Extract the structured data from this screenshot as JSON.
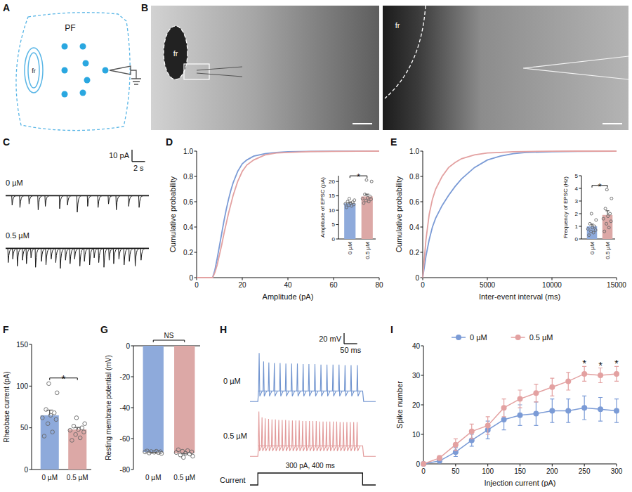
{
  "diagrams": [
    {
      "panel": "A",
      "labels": [
        "PF",
        "fr"
      ]
    },
    {
      "panel": "B",
      "labels": [
        "fr",
        "fr"
      ]
    }
  ],
  "chart_data": [
    {
      "panel": "C",
      "type": "trace",
      "tick_labels": false,
      "xlim": [
        0,
        22
      ],
      "ylim": [
        -20,
        5
      ],
      "scale_bars": [
        {
          "axis": "y",
          "value": 10,
          "label": "10 pA"
        },
        {
          "axis": "x",
          "value": 2,
          "label": "2 s"
        }
      ],
      "series": [
        {
          "name": "0 µM",
          "color": "#1a1a1a",
          "x": [
            1.0,
            2.2,
            3.6,
            5.0,
            6.1,
            8.3,
            9.5,
            11.0,
            12.6,
            14.2,
            15.8,
            17.0,
            18.9,
            20.5
          ],
          "values": [
            -8,
            -10,
            -7,
            -12,
            -9,
            -11,
            -8,
            -14,
            -9,
            -10,
            -7,
            -12,
            -9,
            -10
          ]
        },
        {
          "name": "0.5 µM",
          "color": "#1a1a1a",
          "x": [
            0.4,
            1.1,
            1.8,
            2.6,
            3.2,
            3.9,
            4.6,
            5.5,
            6.2,
            7.0,
            7.7,
            8.4,
            9.2,
            9.9,
            10.6,
            11.4,
            12.1,
            12.9,
            13.6,
            14.3,
            15.1,
            15.9,
            16.6,
            17.4,
            18.2,
            19.0,
            19.9,
            20.8
          ],
          "values": [
            -12,
            -9,
            -15,
            -10,
            -13,
            -8,
            -16,
            -11,
            -14,
            -9,
            -12,
            -17,
            -10,
            -13,
            -9,
            -15,
            -11,
            -14,
            -8,
            -12,
            -16,
            -10,
            -13,
            -9,
            -14,
            -11,
            -15,
            -10
          ]
        }
      ]
    },
    {
      "panel": "D",
      "type": "line",
      "x_label": "Amplitude (pA)",
      "y_label": "Cumulative probability",
      "xlim": [
        0,
        80
      ],
      "xticks": [
        0,
        20,
        40,
        60,
        80
      ],
      "ylim": [
        0,
        1
      ],
      "yticks": [
        0,
        0.2,
        0.4,
        0.6,
        0.8,
        {
          "value": 1,
          "label": "1.0"
        }
      ],
      "series": [
        {
          "color": "#7b9bd6",
          "x": [
            0,
            7,
            8,
            9,
            10,
            11,
            12,
            13,
            14,
            15,
            16,
            18,
            20,
            22,
            25,
            30,
            35,
            40,
            50,
            60,
            80
          ],
          "values": [
            0,
            0,
            0.06,
            0.15,
            0.25,
            0.35,
            0.45,
            0.54,
            0.62,
            0.69,
            0.75,
            0.84,
            0.9,
            0.93,
            0.96,
            0.98,
            0.99,
            0.995,
            0.998,
            0.999,
            1
          ]
        },
        {
          "color": "#e3a1a1",
          "x": [
            0,
            7,
            8,
            9,
            10,
            11,
            12,
            13,
            14,
            15,
            16,
            18,
            20,
            22,
            25,
            30,
            35,
            40,
            50,
            60,
            80
          ],
          "values": [
            0,
            0,
            0.04,
            0.1,
            0.18,
            0.26,
            0.35,
            0.43,
            0.51,
            0.58,
            0.65,
            0.76,
            0.84,
            0.89,
            0.93,
            0.97,
            0.985,
            0.99,
            0.996,
            0.998,
            1
          ]
        }
      ]
    },
    {
      "type": "bar",
      "y_label": "Amplitude of EPSC (pA)",
      "categories": [
        "0 µM",
        "0.5 µM"
      ],
      "values": [
        12.4,
        14.8
      ],
      "errors": [
        0.3,
        0.8
      ],
      "points": [
        [
          11,
          11.5,
          11.8,
          12,
          12.2,
          12.5,
          12.8,
          13,
          13.5,
          14
        ],
        [
          12.5,
          13,
          13.4,
          13.8,
          14,
          14.3,
          14.8,
          15.5,
          20,
          20.5
        ]
      ],
      "colors": [
        "#8eaadb",
        "#dca8a6"
      ],
      "ylim": [
        0,
        22
      ],
      "yticks": [
        0,
        5,
        10,
        15,
        20
      ],
      "annotations": [
        {
          "text": "*"
        }
      ]
    },
    {
      "panel": "E",
      "type": "line",
      "x_label": "Inter-event interval (ms)",
      "y_label": "Cumulative probability",
      "xlim": [
        0,
        15000
      ],
      "xticks": [
        0,
        5000,
        10000,
        15000
      ],
      "ylim": [
        0,
        1
      ],
      "yticks": [
        0,
        0.2,
        0.4,
        0.6,
        0.8,
        {
          "value": 1,
          "label": "1.0"
        }
      ],
      "series": [
        {
          "color": "#7b9bd6",
          "x": [
            0,
            250,
            500,
            750,
            1000,
            1500,
            2000,
            2500,
            3000,
            4000,
            5000,
            6000,
            7000,
            8000,
            10000,
            12000,
            15000
          ],
          "values": [
            0,
            0.17,
            0.3,
            0.4,
            0.47,
            0.57,
            0.65,
            0.72,
            0.78,
            0.87,
            0.93,
            0.96,
            0.98,
            0.99,
            0.995,
            0.998,
            1
          ]
        },
        {
          "color": "#e3a1a1",
          "x": [
            0,
            250,
            500,
            750,
            1000,
            1500,
            2000,
            2500,
            3000,
            4000,
            5000,
            6000,
            7000,
            8000,
            10000,
            12000,
            15000
          ],
          "values": [
            0,
            0.3,
            0.5,
            0.62,
            0.7,
            0.8,
            0.87,
            0.91,
            0.94,
            0.97,
            0.985,
            0.99,
            0.995,
            0.997,
            0.999,
            1,
            1
          ]
        }
      ]
    },
    {
      "type": "bar",
      "y_label": "Frequency of EPSC (Hz)",
      "categories": [
        "0 µM",
        "0.5 µM"
      ],
      "values": [
        1.0,
        1.9
      ],
      "errors": [
        0.17,
        0.33
      ],
      "points": [
        [
          0.3,
          0.5,
          0.6,
          0.7,
          0.8,
          0.9,
          1.0,
          1.2,
          1.5,
          2.0
        ],
        [
          0.6,
          0.9,
          1.2,
          1.4,
          1.6,
          1.8,
          2.0,
          2.4,
          3.2,
          3.9
        ]
      ],
      "colors": [
        "#8eaadb",
        "#dca8a6"
      ],
      "ylim": [
        0,
        5
      ],
      "yticks": [
        0,
        1,
        2,
        3,
        4,
        5
      ],
      "annotations": [
        {
          "text": "*"
        }
      ]
    },
    {
      "panel": "F",
      "type": "bar",
      "y_label": "Rheobase current (pA)",
      "categories": [
        "0 µM",
        "0.5 µM"
      ],
      "values": [
        65,
        48
      ],
      "errors": [
        6.3,
        2.5
      ],
      "points": [
        [
          40,
          45,
          55,
          60,
          62,
          65,
          68,
          72,
          92,
          103
        ],
        [
          35,
          38,
          42,
          45,
          47,
          48,
          50,
          52,
          55,
          62
        ]
      ],
      "colors": [
        "#8eaadb",
        "#dca8a6"
      ],
      "ylim": [
        0,
        150
      ],
      "yticks": [
        0,
        50,
        100,
        150
      ],
      "annotations": [
        {
          "text": "*"
        }
      ]
    },
    {
      "panel": "G",
      "type": "bar",
      "y_label": "Resting membrane potential (mV)",
      "categories": [
        "0 µM",
        "0.5 µM"
      ],
      "values": [
        -68.7,
        -69.4
      ],
      "errors": [
        0.2,
        0.5
      ],
      "points": [
        [
          -68,
          -68.2,
          -68.4,
          -68.5,
          -68.6,
          -68.8,
          -69,
          -69.3,
          -69.6
        ],
        [
          -67.2,
          -67.8,
          -68.2,
          -68.6,
          -69,
          -69.5,
          -70,
          -70.6,
          -71.4,
          -72.2
        ]
      ],
      "colors": [
        "#8eaadb",
        "#dca8a6"
      ],
      "ylim": [
        -80,
        0
      ],
      "yticks": [
        0,
        -20,
        -40,
        -60,
        -80
      ],
      "annotations": [
        {
          "text": "NS"
        }
      ]
    },
    {
      "panel": "H",
      "type": "spike_train",
      "tick_labels": false,
      "xlim": [
        -30,
        450
      ],
      "ylim": [
        -75,
        25
      ],
      "baseline": -70,
      "plateau": -50,
      "stimulus": {
        "name": "Current",
        "label": "300 pA, 400 ms",
        "start": 0,
        "end": 400
      },
      "scale_bars": [
        {
          "axis": "y",
          "value": 20,
          "label": "20 mV"
        },
        {
          "axis": "x",
          "value": 50,
          "label": "50 ms"
        }
      ],
      "series": [
        {
          "name": "0 µM",
          "color": "#6f93cf",
          "x": [
            5,
            22,
            42,
            63,
            85,
            107,
            129,
            151,
            173,
            195,
            218,
            241,
            264,
            287,
            310,
            333,
            356,
            380
          ],
          "values": [
            22,
            6,
            4,
            3,
            3,
            2,
            2,
            2,
            1,
            1,
            1,
            0,
            0,
            0,
            0,
            -1,
            -1,
            -1
          ]
        },
        {
          "name": "0.5 µM",
          "color": "#e29a9a",
          "x": [
            4,
            16,
            28,
            41,
            54,
            67,
            80,
            93,
            106,
            119,
            132,
            145,
            158,
            171,
            184,
            197,
            210,
            223,
            236,
            249,
            262,
            275,
            288,
            301,
            314,
            327,
            340,
            353,
            366,
            379
          ],
          "values": [
            15,
            4,
            2,
            1,
            0,
            0,
            -1,
            -1,
            -1,
            -2,
            -2,
            -2,
            -2,
            -3,
            -3,
            -3,
            -3,
            -3,
            -4,
            -4,
            -4,
            -4,
            -4,
            -4,
            -5,
            -5,
            -5,
            -5,
            -5,
            -5
          ]
        }
      ]
    },
    {
      "panel": "I",
      "type": "line",
      "x_label": "Injection current (pA)",
      "y_label": "Spike number",
      "legend": "top",
      "marker": "circle",
      "xlim": [
        0,
        300
      ],
      "xticks": [
        0,
        50,
        100,
        150,
        200,
        250,
        300
      ],
      "ylim": [
        0,
        40
      ],
      "yticks": [
        0,
        10,
        20,
        30,
        40
      ],
      "x": [
        0,
        25,
        50,
        75,
        100,
        125,
        150,
        175,
        200,
        225,
        250,
        275,
        300
      ],
      "series": [
        {
          "name": "0 µM",
          "color": "#7b9bd6",
          "values": [
            0,
            1,
            4,
            8,
            11.5,
            15,
            16.5,
            17,
            18,
            18,
            19,
            18.5,
            18
          ],
          "errors": [
            0,
            0.5,
            1.5,
            2,
            3,
            3.5,
            3.5,
            4,
            4,
            4,
            4,
            4,
            4
          ]
        },
        {
          "name": "0.5 µM",
          "color": "#e3a1a1",
          "values": [
            0,
            2,
            6.5,
            11,
            13,
            19,
            22,
            24,
            26,
            28,
            30.5,
            30,
            30.5
          ],
          "errors": [
            0,
            0.8,
            2,
            2.5,
            3,
            3,
            3,
            3,
            3,
            3,
            2.5,
            2.5,
            2.5
          ]
        }
      ],
      "annotations": [
        {
          "text": "*",
          "x": 250
        },
        {
          "text": "*",
          "x": 275
        },
        {
          "text": "*",
          "x": 300
        }
      ]
    }
  ]
}
